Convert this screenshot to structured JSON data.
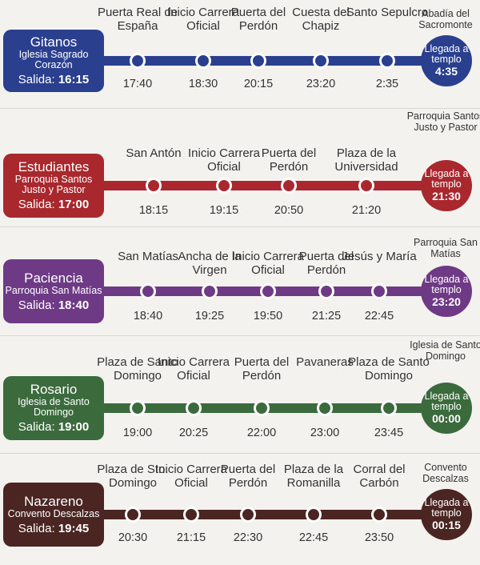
{
  "processions": [
    {
      "name": "Gitanos",
      "origin": "Iglesia Sagrado Corazón",
      "departure_label": "Salida:",
      "departure_time": "16:15",
      "color": "#2b3f8f",
      "stops": [
        {
          "label": "Puerta Real de España",
          "time": "17:40"
        },
        {
          "label": "Inicio Carrera Oficial",
          "time": "18:30"
        },
        {
          "label": "Puerta del Perdón",
          "time": "20:15"
        },
        {
          "label": "Cuesta del Chapiz",
          "time": "23:20"
        },
        {
          "label": "Santo Sepulcro",
          "time": "2:35"
        }
      ],
      "arrival_label": "Llegada a templo",
      "arrival_time": "4:35",
      "destination": "Abadía del Sacromonte"
    },
    {
      "name": "Estudiantes",
      "origin": "Parroquia Santos Justo y Pastor",
      "departure_label": "Salida:",
      "departure_time": "17:00",
      "color": "#a8282e",
      "stops": [
        {
          "label": "San Antón",
          "time": "18:15"
        },
        {
          "label": "Inicio Carrera Oficial",
          "time": "19:15"
        },
        {
          "label": "Puerta del Perdón",
          "time": "20:50"
        },
        {
          "label": "Plaza de la Universidad",
          "time": "21:20"
        }
      ],
      "arrival_label": "Llegada a templo",
      "arrival_time": "21:30",
      "destination": "Parroquia Santos Justo y Pastor"
    },
    {
      "name": "Paciencia",
      "origin": "Parroquia San Matías",
      "departure_label": "Salida:",
      "departure_time": "18:40",
      "color": "#6e3a86",
      "stops": [
        {
          "label": "San Matías",
          "time": "18:40"
        },
        {
          "label": "Ancha de la Virgen",
          "time": "19:25"
        },
        {
          "label": "Inicio Carrera Oficial",
          "time": "19:50"
        },
        {
          "label": "Puerta del Perdón",
          "time": "21:25"
        },
        {
          "label": "Jesús y María",
          "time": "22:45"
        }
      ],
      "arrival_label": "Llegada a templo",
      "arrival_time": "23:20",
      "destination": "Parroquia San Matías"
    },
    {
      "name": "Rosario",
      "origin": "Iglesia de Santo Domingo",
      "departure_label": "Salida:",
      "departure_time": "19:00",
      "color": "#3b6b3d",
      "stops": [
        {
          "label": "Plaza de Santo Domingo",
          "time": "19:00"
        },
        {
          "label": "Inicio Carrera Oficial",
          "time": "20:25"
        },
        {
          "label": "Puerta del Perdón",
          "time": "22:00"
        },
        {
          "label": "Pavaneras",
          "time": "23:00"
        },
        {
          "label": "Plaza de Santo Domingo",
          "time": "23:45"
        }
      ],
      "arrival_label": "Llegada a templo",
      "arrival_time": "00:00",
      "destination": "Iglesia de Santo Domingo"
    },
    {
      "name": "Nazareno",
      "origin": "Convento Descalzas",
      "departure_label": "Salida:",
      "departure_time": "19:45",
      "color": "#4a2522",
      "stops": [
        {
          "label": "Plaza de Sto. Domingo",
          "time": "20:30"
        },
        {
          "label": "Inicio Carrera Oficial",
          "time": "21:15"
        },
        {
          "label": "Puerta del Perdón",
          "time": "22:30"
        },
        {
          "label": "Plaza de la Romanilla",
          "time": "22:45"
        },
        {
          "label": "Corral del Carbón",
          "time": "23:50"
        }
      ],
      "arrival_label": "Llegada a templo",
      "arrival_time": "00:15",
      "destination": "Convento Descalzas"
    }
  ]
}
